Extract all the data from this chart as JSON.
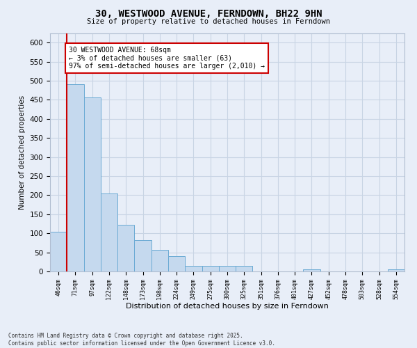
{
  "title": "30, WESTWOOD AVENUE, FERNDOWN, BH22 9HN",
  "subtitle": "Size of property relative to detached houses in Ferndown",
  "xlabel": "Distribution of detached houses by size in Ferndown",
  "ylabel": "Number of detached properties",
  "categories": [
    "46sqm",
    "71sqm",
    "97sqm",
    "122sqm",
    "148sqm",
    "173sqm",
    "198sqm",
    "224sqm",
    "249sqm",
    "275sqm",
    "300sqm",
    "325sqm",
    "351sqm",
    "376sqm",
    "401sqm",
    "427sqm",
    "452sqm",
    "478sqm",
    "503sqm",
    "528sqm",
    "554sqm"
  ],
  "values": [
    104,
    490,
    457,
    205,
    122,
    82,
    56,
    40,
    14,
    14,
    14,
    14,
    0,
    0,
    0,
    5,
    0,
    0,
    0,
    0,
    5
  ],
  "bar_color": "#c5d9ee",
  "bar_edge_color": "#6aaad4",
  "grid_color": "#c8d4e4",
  "bg_color": "#e8eef8",
  "red_line_x": 0.5,
  "annotation_text": "30 WESTWOOD AVENUE: 68sqm\n← 3% of detached houses are smaller (63)\n97% of semi-detached houses are larger (2,010) →",
  "annotation_box_color": "#ffffff",
  "annotation_border_color": "#cc0000",
  "footer_text": "Contains HM Land Registry data © Crown copyright and database right 2025.\nContains public sector information licensed under the Open Government Licence v3.0.",
  "ylim": [
    0,
    625
  ],
  "yticks": [
    0,
    50,
    100,
    150,
    200,
    250,
    300,
    350,
    400,
    450,
    500,
    550,
    600
  ]
}
